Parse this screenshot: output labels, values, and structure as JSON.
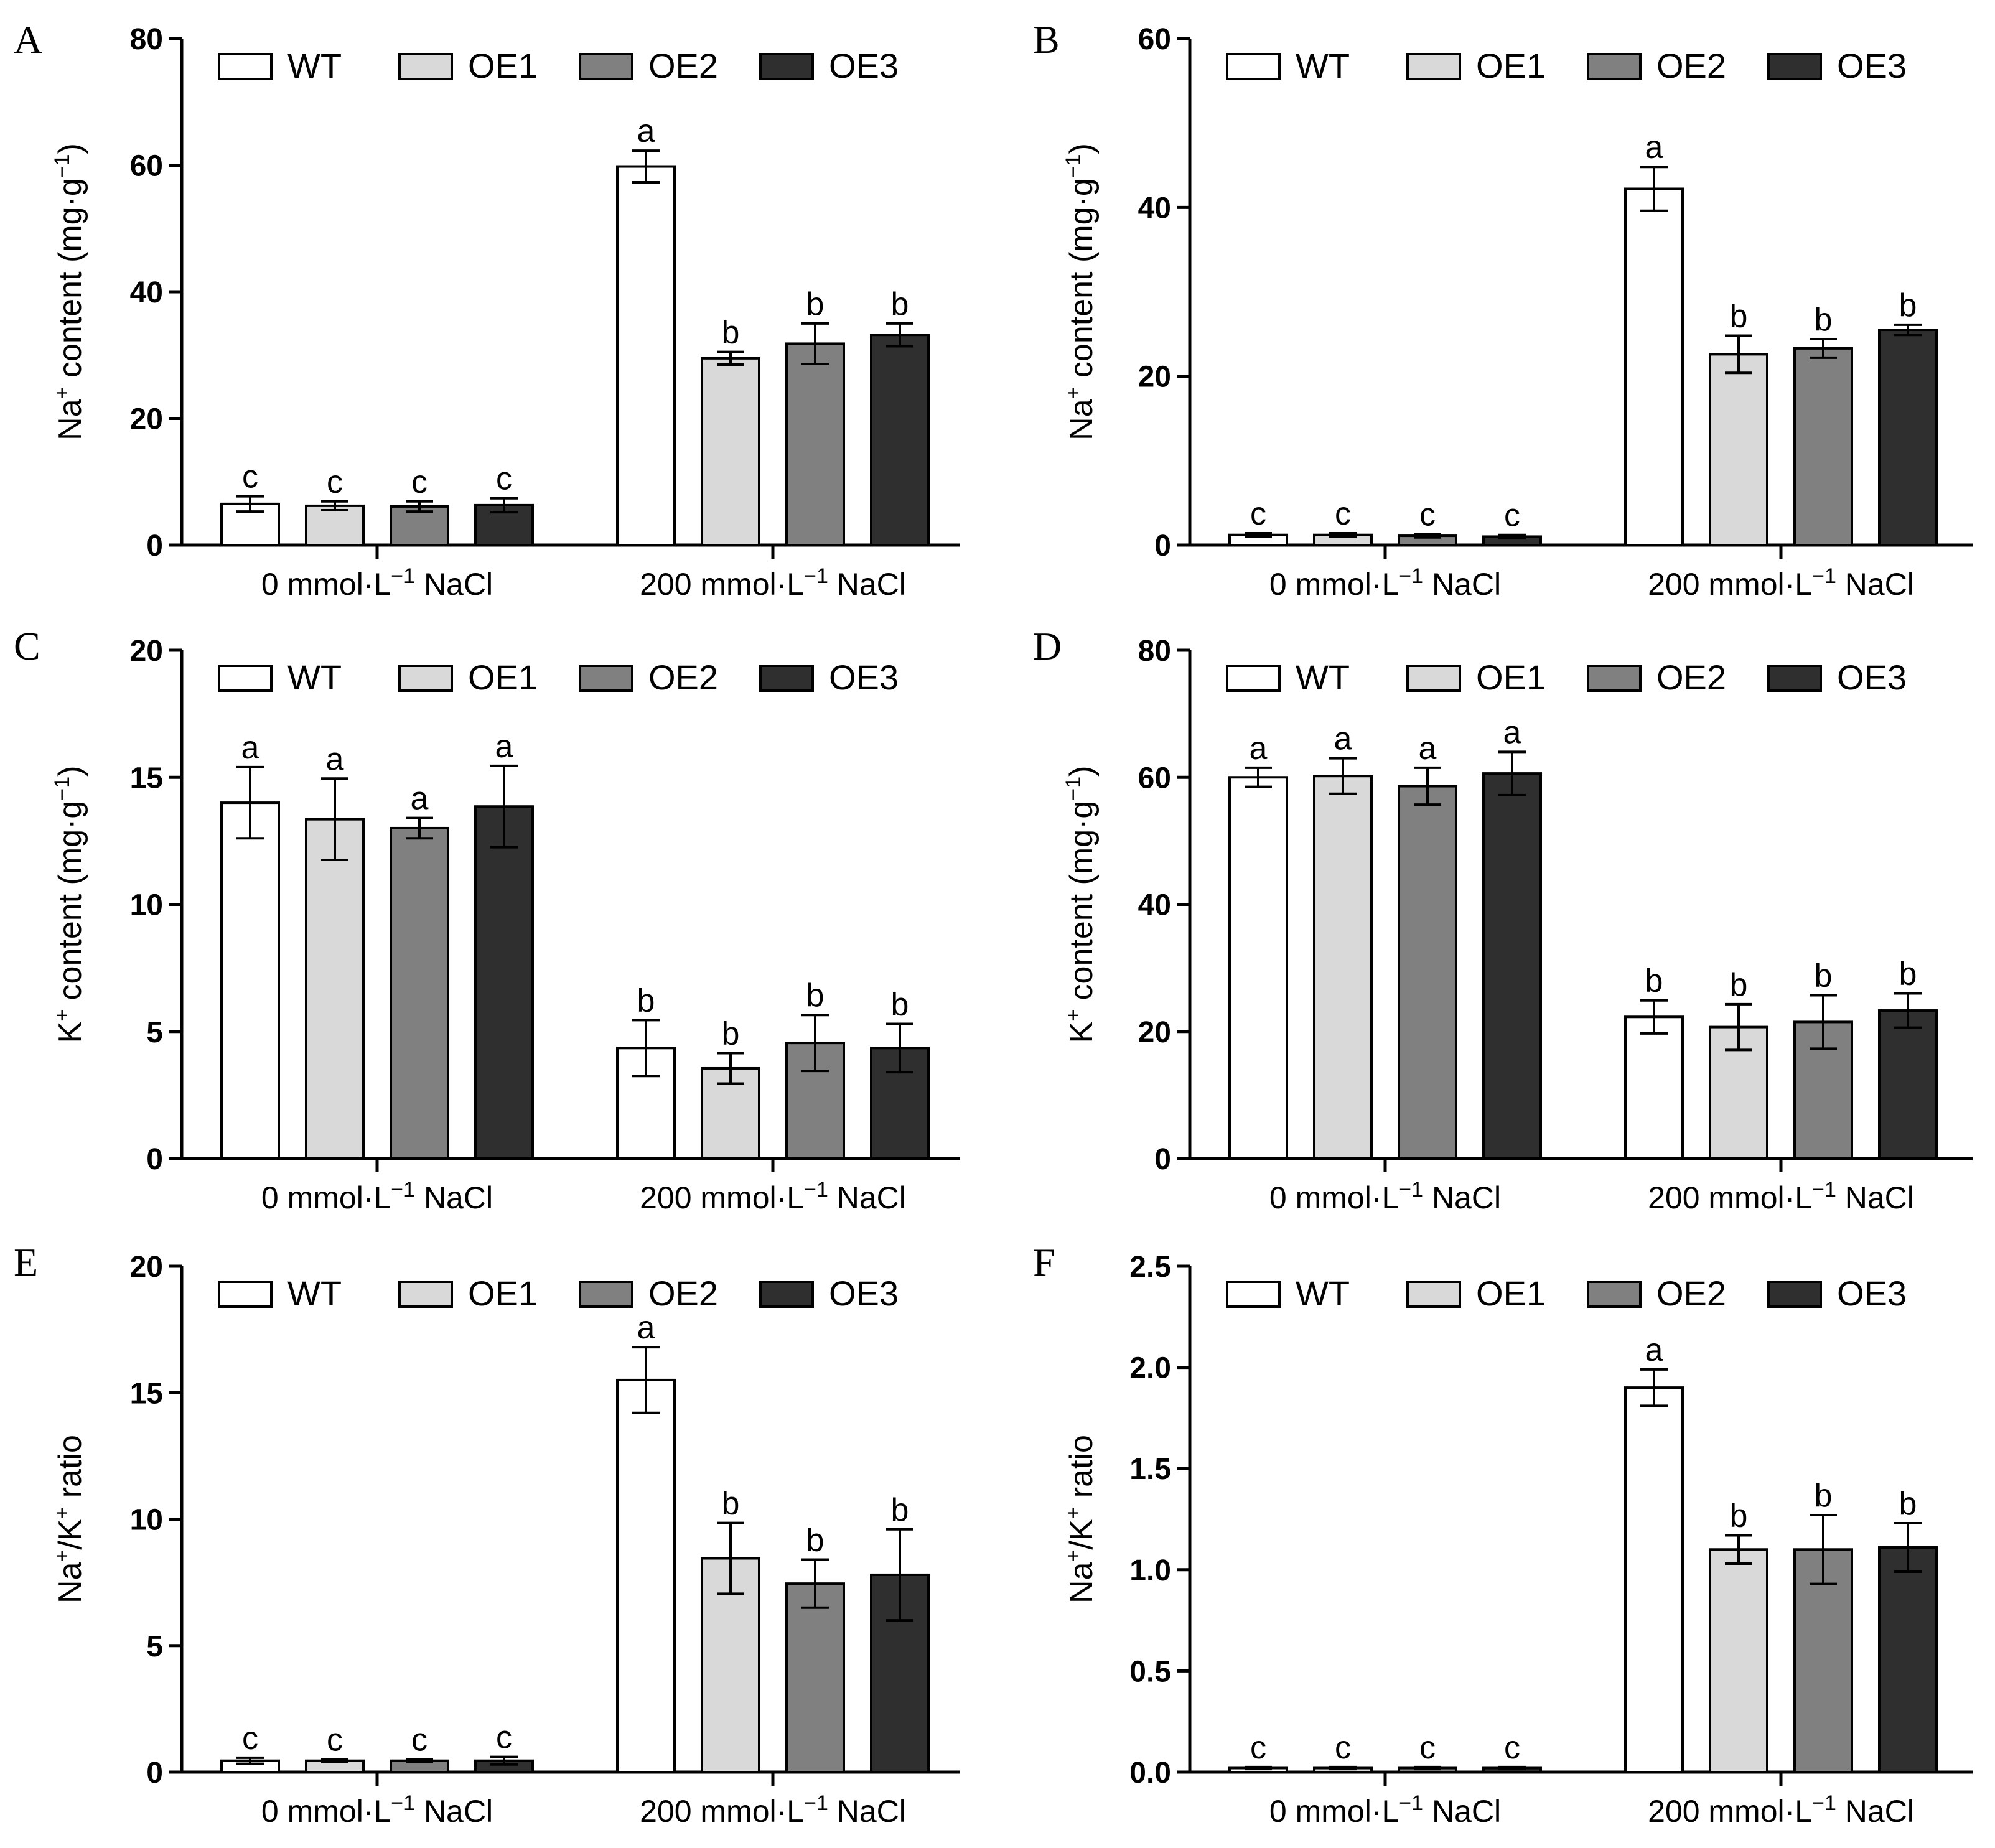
{
  "legend": {
    "series": [
      {
        "name": "WT",
        "color": "#ffffff"
      },
      {
        "name": "OE1",
        "color": "#d9d9d9"
      },
      {
        "name": "OE2",
        "color": "#808080"
      },
      {
        "name": "OE3",
        "color": "#2f2f2f"
      }
    ]
  },
  "chart_data": [
    {
      "panel": "A",
      "type": "bar",
      "categories": [
        "0 mmol·L⁻¹ NaCl",
        "200 mmol·L⁻¹ NaCl"
      ],
      "ylabel": "Na⁺ content (mg·g⁻¹)",
      "ylim": [
        0,
        80
      ],
      "yticks": [
        "0",
        "20",
        "40",
        "60",
        "80"
      ],
      "legend_position": "top",
      "series": [
        {
          "name": "WT",
          "values": [
            6.5,
            59.8
          ],
          "errors": [
            1.2,
            2.5
          ],
          "letters": [
            "c",
            "a"
          ]
        },
        {
          "name": "OE1",
          "values": [
            6.2,
            29.5
          ],
          "errors": [
            0.7,
            1.0
          ],
          "letters": [
            "c",
            "b"
          ]
        },
        {
          "name": "OE2",
          "values": [
            6.1,
            31.8
          ],
          "errors": [
            0.8,
            3.2
          ],
          "letters": [
            "c",
            "b"
          ]
        },
        {
          "name": "OE3",
          "values": [
            6.3,
            33.2
          ],
          "errors": [
            1.1,
            1.8
          ],
          "letters": [
            "c",
            "b"
          ]
        }
      ]
    },
    {
      "panel": "B",
      "type": "bar",
      "categories": [
        "0 mmol·L⁻¹ NaCl",
        "200 mmol·L⁻¹ NaCl"
      ],
      "ylabel": "Na⁺ content (mg·g⁻¹)",
      "ylim": [
        0,
        60
      ],
      "yticks": [
        "0",
        "20",
        "40",
        "60"
      ],
      "legend_position": "top",
      "series": [
        {
          "name": "WT",
          "values": [
            1.2,
            42.2
          ],
          "errors": [
            0.2,
            2.6
          ],
          "letters": [
            "c",
            "a"
          ]
        },
        {
          "name": "OE1",
          "values": [
            1.2,
            22.6
          ],
          "errors": [
            0.2,
            2.2
          ],
          "letters": [
            "c",
            "b"
          ]
        },
        {
          "name": "OE2",
          "values": [
            1.1,
            23.3
          ],
          "errors": [
            0.2,
            1.1
          ],
          "letters": [
            "c",
            "b"
          ]
        },
        {
          "name": "OE3",
          "values": [
            1.0,
            25.5
          ],
          "errors": [
            0.2,
            0.6
          ],
          "letters": [
            "c",
            "b"
          ]
        }
      ]
    },
    {
      "panel": "C",
      "type": "bar",
      "categories": [
        "0 mmol·L⁻¹ NaCl",
        "200 mmol·L⁻¹ NaCl"
      ],
      "ylabel": "K⁺ content (mg·g⁻¹)",
      "ylim": [
        0,
        20
      ],
      "yticks": [
        "0",
        "5",
        "10",
        "15",
        "20"
      ],
      "legend_position": "top",
      "series": [
        {
          "name": "WT",
          "values": [
            14.0,
            4.35
          ],
          "errors": [
            1.4,
            1.1
          ],
          "letters": [
            "a",
            "b"
          ]
        },
        {
          "name": "OE1",
          "values": [
            13.35,
            3.55
          ],
          "errors": [
            1.6,
            0.6
          ],
          "letters": [
            "a",
            "b"
          ]
        },
        {
          "name": "OE2",
          "values": [
            13.0,
            4.55
          ],
          "errors": [
            0.4,
            1.1
          ],
          "letters": [
            "a",
            "b"
          ]
        },
        {
          "name": "OE3",
          "values": [
            13.85,
            4.35
          ],
          "errors": [
            1.6,
            0.95
          ],
          "letters": [
            "a",
            "b"
          ]
        }
      ]
    },
    {
      "panel": "D",
      "type": "bar",
      "categories": [
        "0 mmol·L⁻¹ NaCl",
        "200 mmol·L⁻¹ NaCl"
      ],
      "ylabel": "K⁺ content (mg·g⁻¹)",
      "ylim": [
        0,
        80
      ],
      "yticks": [
        "0",
        "20",
        "40",
        "60",
        "80"
      ],
      "legend_position": "top",
      "series": [
        {
          "name": "WT",
          "values": [
            60.0,
            22.3
          ],
          "errors": [
            1.5,
            2.6
          ],
          "letters": [
            "a",
            "b"
          ]
        },
        {
          "name": "OE1",
          "values": [
            60.2,
            20.7
          ],
          "errors": [
            2.8,
            3.6
          ],
          "letters": [
            "a",
            "b"
          ]
        },
        {
          "name": "OE2",
          "values": [
            58.6,
            21.5
          ],
          "errors": [
            2.9,
            4.2
          ],
          "letters": [
            "a",
            "b"
          ]
        },
        {
          "name": "OE3",
          "values": [
            60.6,
            23.3
          ],
          "errors": [
            3.4,
            2.7
          ],
          "letters": [
            "a",
            "b"
          ]
        }
      ]
    },
    {
      "panel": "E",
      "type": "bar",
      "categories": [
        "0 mmol·L⁻¹ NaCl",
        "200 mmol·L⁻¹ NaCl"
      ],
      "ylabel": "Na⁺/K⁺ ratio",
      "ylim": [
        0,
        20
      ],
      "yticks": [
        "0",
        "5",
        "10",
        "15",
        "20"
      ],
      "legend_position": "top",
      "series": [
        {
          "name": "WT",
          "values": [
            0.45,
            15.5
          ],
          "errors": [
            0.12,
            1.3
          ],
          "letters": [
            "c",
            "a"
          ]
        },
        {
          "name": "OE1",
          "values": [
            0.45,
            8.45
          ],
          "errors": [
            0.05,
            1.4
          ],
          "letters": [
            "c",
            "b"
          ]
        },
        {
          "name": "OE2",
          "values": [
            0.45,
            7.45
          ],
          "errors": [
            0.05,
            0.95
          ],
          "letters": [
            "c",
            "b"
          ]
        },
        {
          "name": "OE3",
          "values": [
            0.45,
            7.8
          ],
          "errors": [
            0.15,
            1.8
          ],
          "letters": [
            "c",
            "b"
          ]
        }
      ]
    },
    {
      "panel": "F",
      "type": "bar",
      "categories": [
        "0 mmol·L⁻¹ NaCl",
        "200 mmol·L⁻¹ NaCl"
      ],
      "ylabel": "Na⁺/K⁺ ratio",
      "ylim": [
        0,
        2.5
      ],
      "yticks": [
        "0.0",
        "0.5",
        "1.0",
        "1.5",
        "2.0",
        "2.5"
      ],
      "legend_position": "top",
      "series": [
        {
          "name": "WT",
          "values": [
            0.02,
            1.9
          ],
          "errors": [
            0.005,
            0.09
          ],
          "letters": [
            "c",
            "a"
          ]
        },
        {
          "name": "OE1",
          "values": [
            0.02,
            1.1
          ],
          "errors": [
            0.005,
            0.07
          ],
          "letters": [
            "c",
            "b"
          ]
        },
        {
          "name": "OE2",
          "values": [
            0.02,
            1.1
          ],
          "errors": [
            0.005,
            0.17
          ],
          "letters": [
            "c",
            "b"
          ]
        },
        {
          "name": "OE3",
          "values": [
            0.02,
            1.11
          ],
          "errors": [
            0.005,
            0.12
          ],
          "letters": [
            "c",
            "b"
          ]
        }
      ]
    }
  ]
}
